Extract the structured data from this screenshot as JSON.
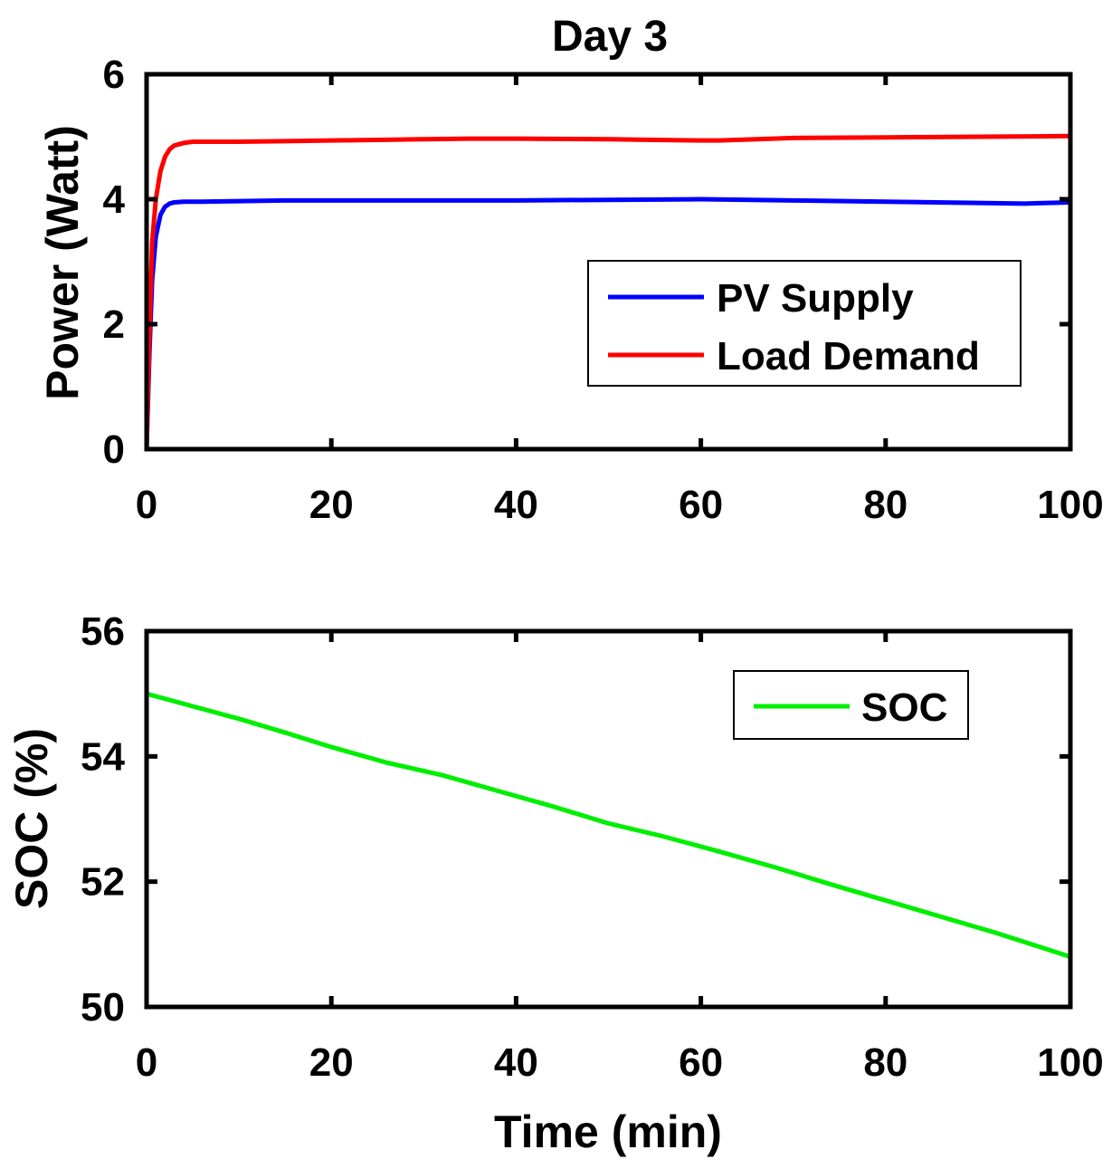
{
  "chart_data": [
    {
      "type": "line",
      "title": "Day 3",
      "xlabel": "",
      "ylabel": "Power (Watt)",
      "xlim": [
        0,
        100
      ],
      "ylim": [
        0,
        6
      ],
      "xticks": [
        0,
        20,
        40,
        60,
        80,
        100
      ],
      "xtick_labels": [
        "0",
        "20",
        "40",
        "60",
        "80",
        "100"
      ],
      "yticks": [
        0,
        2,
        4,
        6
      ],
      "ytick_labels": [
        "0",
        "2",
        "4",
        "6"
      ],
      "legend_position": "center-right",
      "series": [
        {
          "name": "PV Supply",
          "color": "#0000ff",
          "x": [
            0,
            0.3,
            0.6,
            1.0,
            1.5,
            2.0,
            2.5,
            3.0,
            4.0,
            6.0,
            10,
            15,
            20,
            30,
            40,
            50,
            60,
            70,
            80,
            90,
            95,
            100
          ],
          "y": [
            0,
            1.5,
            2.7,
            3.4,
            3.75,
            3.88,
            3.93,
            3.95,
            3.96,
            3.96,
            3.97,
            3.98,
            3.98,
            3.98,
            3.98,
            3.99,
            4.0,
            3.98,
            3.96,
            3.94,
            3.93,
            3.95
          ]
        },
        {
          "name": "Load Demand",
          "color": "#ff0000",
          "x": [
            0,
            0.3,
            0.6,
            1.0,
            1.5,
            2.0,
            2.5,
            3.0,
            4.0,
            5.0,
            10,
            15,
            20,
            30,
            35,
            40,
            50,
            55,
            60,
            62,
            70,
            80,
            90,
            100
          ],
          "y": [
            0,
            1.8,
            3.3,
            4.0,
            4.45,
            4.68,
            4.8,
            4.86,
            4.9,
            4.92,
            4.92,
            4.93,
            4.94,
            4.96,
            4.97,
            4.97,
            4.96,
            4.95,
            4.94,
            4.94,
            4.98,
            4.99,
            5.0,
            5.01
          ]
        }
      ]
    },
    {
      "type": "line",
      "title": "",
      "xlabel": "Time (min)",
      "ylabel": "SOC (%)",
      "xlim": [
        0,
        100
      ],
      "ylim": [
        50,
        56
      ],
      "xticks": [
        0,
        20,
        40,
        60,
        80,
        100
      ],
      "xtick_labels": [
        "0",
        "20",
        "40",
        "60",
        "80",
        "100"
      ],
      "yticks": [
        50,
        52,
        54,
        56
      ],
      "ytick_labels": [
        "50",
        "52",
        "54",
        "56"
      ],
      "legend_position": "top-right",
      "series": [
        {
          "name": "SOC",
          "color": "#00ee00",
          "x": [
            0,
            5,
            10,
            15,
            20,
            26,
            32,
            38,
            44,
            50,
            56,
            62,
            68,
            74,
            80,
            86,
            92,
            100
          ],
          "y": [
            55.0,
            54.8,
            54.6,
            54.38,
            54.15,
            53.9,
            53.7,
            53.45,
            53.2,
            52.93,
            52.72,
            52.48,
            52.23,
            51.96,
            51.7,
            51.44,
            51.18,
            50.8
          ]
        }
      ]
    }
  ]
}
